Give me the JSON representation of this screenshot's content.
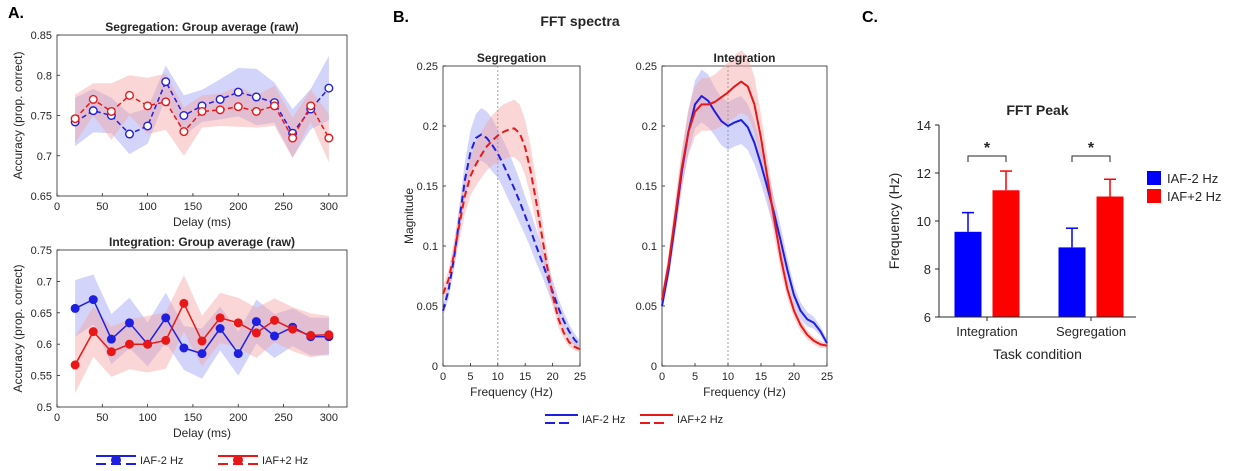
{
  "panel_labels": [
    "A.",
    "B.",
    "C."
  ],
  "colors": {
    "blue": "#1f1fe0",
    "red": "#e81818",
    "blue_band": "#9d9ff5",
    "red_band": "#f5a3a3",
    "iaf_minus_bar": "#0000ff",
    "iaf_plus_bar": "#ff0000"
  },
  "legend_a": [
    "IAF-2 Hz",
    "IAF+2 Hz"
  ],
  "legend_b": [
    "IAF-2 Hz",
    "IAF+2 Hz"
  ],
  "legend_c": [
    "IAF-2 Hz",
    "IAF+2 Hz"
  ],
  "b_suptitle": "FFT spectra",
  "chart_data": [
    {
      "id": "a_top",
      "type": "line",
      "title": "Segregation: Group average (raw)",
      "xlabel": "Delay (ms)",
      "ylabel": "Accuracy (prop. correct)",
      "xlim": [
        0,
        320
      ],
      "ylim": [
        0.65,
        0.85
      ],
      "xticks": [
        0,
        50,
        100,
        150,
        200,
        250,
        300
      ],
      "yticks": [
        0.65,
        0.7,
        0.75,
        0.8,
        0.85
      ],
      "x": [
        20,
        40,
        60,
        80,
        100,
        120,
        140,
        160,
        180,
        200,
        220,
        240,
        260,
        280,
        300
      ],
      "series": [
        {
          "name": "IAF-2 Hz",
          "color": "#1f1fe0",
          "dashed": true,
          "marker": "open",
          "values": [
            0.742,
            0.756,
            0.75,
            0.727,
            0.737,
            0.792,
            0.75,
            0.762,
            0.77,
            0.779,
            0.773,
            0.766,
            0.728,
            0.758,
            0.784
          ],
          "band": [
            0.03,
            0.027,
            0.022,
            0.025,
            0.022,
            0.02,
            0.025,
            0.02,
            0.025,
            0.03,
            0.035,
            0.025,
            0.03,
            0.025,
            0.04
          ]
        },
        {
          "name": "IAF+2 Hz",
          "color": "#e81818",
          "dashed": true,
          "marker": "open",
          "values": [
            0.746,
            0.77,
            0.755,
            0.775,
            0.762,
            0.767,
            0.73,
            0.755,
            0.757,
            0.761,
            0.755,
            0.762,
            0.722,
            0.762,
            0.722
          ],
          "band": [
            0.03,
            0.02,
            0.035,
            0.025,
            0.035,
            0.035,
            0.03,
            0.02,
            0.02,
            0.025,
            0.02,
            0.025,
            0.025,
            0.02,
            0.03
          ]
        }
      ]
    },
    {
      "id": "a_bottom",
      "type": "line",
      "title": "Integration: Group average (raw)",
      "xlabel": "Delay (ms)",
      "ylabel": "Accuracy (prop. correct)",
      "xlim": [
        0,
        320
      ],
      "ylim": [
        0.5,
        0.75
      ],
      "xticks": [
        0,
        50,
        100,
        150,
        200,
        250,
        300
      ],
      "yticks": [
        0.5,
        0.55,
        0.6,
        0.65,
        0.7,
        0.75
      ],
      "x": [
        20,
        40,
        60,
        80,
        100,
        120,
        140,
        160,
        180,
        200,
        220,
        240,
        260,
        280,
        300
      ],
      "series": [
        {
          "name": "IAF-2 Hz",
          "color": "#1f1fe0",
          "dashed": false,
          "marker": "filled",
          "values": [
            0.657,
            0.671,
            0.608,
            0.634,
            0.6,
            0.642,
            0.594,
            0.585,
            0.625,
            0.585,
            0.636,
            0.613,
            0.627,
            0.612,
            0.612
          ],
          "band": [
            0.045,
            0.04,
            0.04,
            0.04,
            0.035,
            0.04,
            0.035,
            0.04,
            0.035,
            0.035,
            0.035,
            0.035,
            0.03,
            0.03,
            0.03
          ]
        },
        {
          "name": "IAF+2 Hz",
          "color": "#e81818",
          "dashed": false,
          "marker": "filled",
          "values": [
            0.567,
            0.62,
            0.588,
            0.6,
            0.6,
            0.606,
            0.665,
            0.605,
            0.642,
            0.634,
            0.618,
            0.638,
            0.624,
            0.614,
            0.615
          ],
          "band": [
            0.045,
            0.04,
            0.04,
            0.04,
            0.045,
            0.045,
            0.045,
            0.04,
            0.04,
            0.04,
            0.04,
            0.035,
            0.035,
            0.035,
            0.03
          ]
        }
      ]
    },
    {
      "id": "b_left",
      "type": "line",
      "title": "Segregation",
      "xlabel": "Frequency (Hz)",
      "ylabel": "Magnitude",
      "xlim": [
        0,
        25
      ],
      "ylim": [
        0,
        0.25
      ],
      "xticks": [
        0,
        5,
        10,
        15,
        20,
        25
      ],
      "yticks": [
        0,
        0.05,
        0.1,
        0.15,
        0.2,
        0.25
      ],
      "vline": 10,
      "x": [
        0,
        1,
        2,
        3,
        4,
        5,
        6,
        7,
        8,
        9,
        10,
        11,
        12,
        13,
        14,
        15,
        16,
        17,
        18,
        19,
        20,
        21,
        22,
        23,
        24,
        25
      ],
      "series": [
        {
          "name": "IAF-2 Hz",
          "color": "#1f1fe0",
          "dashed": true,
          "values": [
            0.046,
            0.063,
            0.09,
            0.122,
            0.155,
            0.178,
            0.19,
            0.193,
            0.19,
            0.184,
            0.177,
            0.168,
            0.158,
            0.148,
            0.137,
            0.125,
            0.113,
            0.1,
            0.088,
            0.075,
            0.062,
            0.049,
            0.038,
            0.029,
            0.022,
            0.017
          ],
          "band": [
            0.005,
            0.007,
            0.01,
            0.012,
            0.015,
            0.018,
            0.02,
            0.022,
            0.022,
            0.022,
            0.02,
            0.02,
            0.02,
            0.019,
            0.018,
            0.016,
            0.015,
            0.014,
            0.012,
            0.011,
            0.01,
            0.008,
            0.007,
            0.006,
            0.005,
            0.004
          ]
        },
        {
          "name": "IAF+2 Hz",
          "color": "#e81818",
          "dashed": true,
          "values": [
            0.06,
            0.072,
            0.093,
            0.118,
            0.142,
            0.158,
            0.168,
            0.176,
            0.183,
            0.188,
            0.192,
            0.195,
            0.197,
            0.198,
            0.194,
            0.182,
            0.162,
            0.137,
            0.11,
            0.083,
            0.059,
            0.04,
            0.028,
            0.02,
            0.016,
            0.014
          ],
          "band": [
            0.006,
            0.008,
            0.011,
            0.013,
            0.015,
            0.016,
            0.018,
            0.019,
            0.02,
            0.021,
            0.022,
            0.023,
            0.023,
            0.024,
            0.024,
            0.023,
            0.021,
            0.018,
            0.015,
            0.012,
            0.009,
            0.007,
            0.005,
            0.004,
            0.003,
            0.003
          ]
        }
      ]
    },
    {
      "id": "b_right",
      "type": "line",
      "title": "Integration",
      "xlabel": "Frequency (Hz)",
      "ylabel": "",
      "xlim": [
        0,
        25
      ],
      "ylim": [
        0,
        0.25
      ],
      "xticks": [
        0,
        5,
        10,
        15,
        20,
        25
      ],
      "yticks": [
        0,
        0.05,
        0.1,
        0.15,
        0.2,
        0.25
      ],
      "vline": 10,
      "x": [
        0,
        1,
        2,
        3,
        4,
        5,
        6,
        7,
        8,
        9,
        10,
        11,
        12,
        13,
        14,
        15,
        16,
        17,
        18,
        19,
        20,
        21,
        22,
        23,
        24,
        25
      ],
      "series": [
        {
          "name": "IAF-2 Hz",
          "color": "#1f1fe0",
          "dashed": false,
          "values": [
            0.05,
            0.08,
            0.12,
            0.162,
            0.195,
            0.218,
            0.225,
            0.221,
            0.212,
            0.204,
            0.2,
            0.203,
            0.205,
            0.199,
            0.186,
            0.168,
            0.148,
            0.127,
            0.104,
            0.08,
            0.059,
            0.046,
            0.039,
            0.036,
            0.029,
            0.019
          ],
          "band": [
            0.005,
            0.008,
            0.012,
            0.015,
            0.018,
            0.02,
            0.022,
            0.022,
            0.02,
            0.02,
            0.02,
            0.02,
            0.02,
            0.019,
            0.018,
            0.016,
            0.015,
            0.013,
            0.012,
            0.01,
            0.008,
            0.007,
            0.006,
            0.005,
            0.004,
            0.003
          ]
        },
        {
          "name": "IAF+2 Hz",
          "color": "#e81818",
          "dashed": false,
          "values": [
            0.055,
            0.085,
            0.125,
            0.165,
            0.195,
            0.212,
            0.218,
            0.218,
            0.22,
            0.224,
            0.228,
            0.233,
            0.237,
            0.233,
            0.218,
            0.19,
            0.156,
            0.122,
            0.09,
            0.064,
            0.046,
            0.034,
            0.026,
            0.021,
            0.018,
            0.017
          ],
          "band": [
            0.006,
            0.009,
            0.013,
            0.016,
            0.019,
            0.021,
            0.022,
            0.022,
            0.023,
            0.024,
            0.025,
            0.026,
            0.026,
            0.025,
            0.023,
            0.02,
            0.017,
            0.014,
            0.011,
            0.008,
            0.006,
            0.005,
            0.004,
            0.003,
            0.003,
            0.002
          ]
        }
      ]
    },
    {
      "id": "c",
      "type": "bar",
      "title": "FFT Peak",
      "xlabel": "Task condition",
      "ylabel": "Frequency (Hz)",
      "ylim": [
        6,
        14
      ],
      "yticks": [
        6,
        8,
        10,
        12,
        14
      ],
      "categories": [
        "Integration",
        "Segregation"
      ],
      "series": [
        {
          "name": "IAF-2 Hz",
          "color": "#0000ff",
          "values": [
            9.55,
            8.9
          ],
          "errors": [
            0.8,
            0.8
          ]
        },
        {
          "name": "IAF+2 Hz",
          "color": "#ff0000",
          "values": [
            11.28,
            11.02
          ],
          "errors": [
            0.8,
            0.72
          ]
        }
      ],
      "significance": [
        "*",
        "*"
      ]
    }
  ]
}
